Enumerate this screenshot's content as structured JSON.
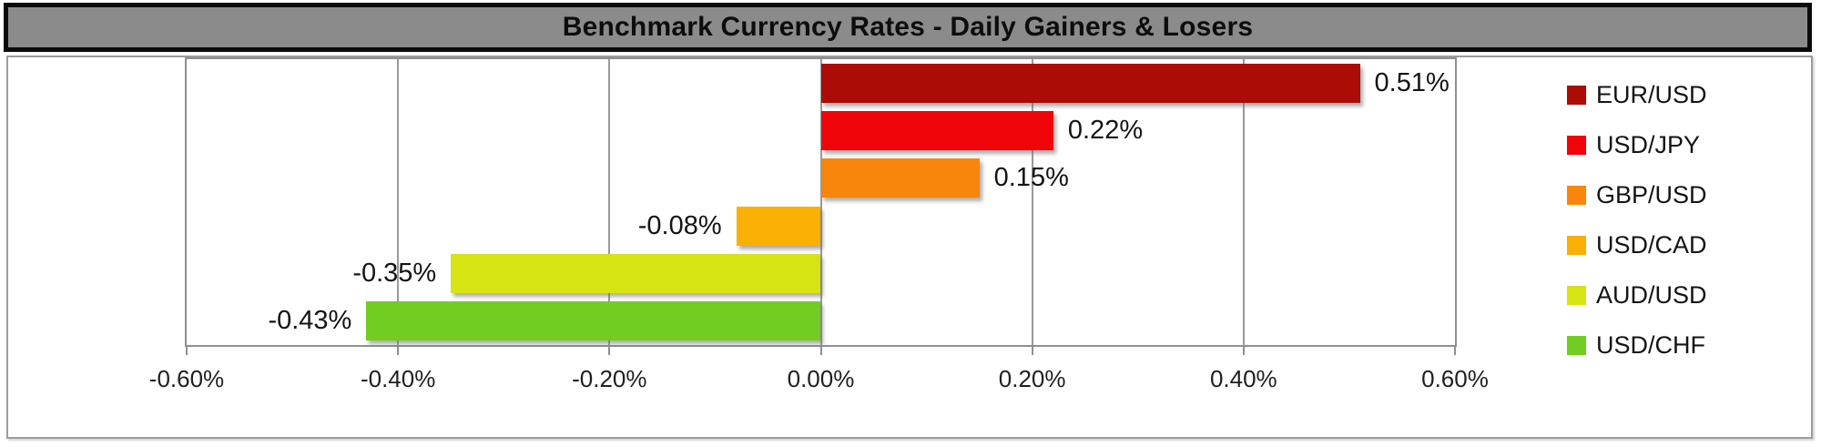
{
  "title": {
    "text": "Benchmark Currency Rates - Daily Gainers & Losers"
  },
  "chart_data": {
    "type": "bar",
    "orientation": "horizontal",
    "title": "Benchmark Currency Rates - Daily Gainers & Losers",
    "categories": [
      "EUR/USD",
      "USD/JPY",
      "GBP/USD",
      "USD/CAD",
      "AUD/USD",
      "USD/CHF"
    ],
    "series": [
      {
        "name": "EUR/USD",
        "value": 0.51,
        "label": "0.51%",
        "color": "#ab0c06"
      },
      {
        "name": "USD/JPY",
        "value": 0.22,
        "label": "0.22%",
        "color": "#ee0409"
      },
      {
        "name": "GBP/USD",
        "value": 0.15,
        "label": "0.15%",
        "color": "#f8860d"
      },
      {
        "name": "USD/CAD",
        "value": -0.08,
        "label": "-0.08%",
        "color": "#fab005"
      },
      {
        "name": "AUD/USD",
        "value": -0.35,
        "label": "-0.35%",
        "color": "#d6e413"
      },
      {
        "name": "USD/CHF",
        "value": -0.43,
        "label": "-0.43%",
        "color": "#72cc21"
      }
    ],
    "xlim": [
      -0.6,
      0.6
    ],
    "x_ticks": [
      -0.6,
      -0.4,
      -0.2,
      0.0,
      0.2,
      0.4,
      0.6
    ],
    "x_tick_labels": [
      "-0.60%",
      "-0.40%",
      "-0.20%",
      "0.00%",
      "0.20%",
      "0.40%",
      "0.60%"
    ],
    "grid": true,
    "legend_position": "right"
  },
  "colors": {
    "banner_fill": "#8b8b8b",
    "banner_border": "#0b0b0b",
    "gridline": "#9a9a9a",
    "axis_text": "#1f1f1f",
    "label_text": "#141414"
  }
}
